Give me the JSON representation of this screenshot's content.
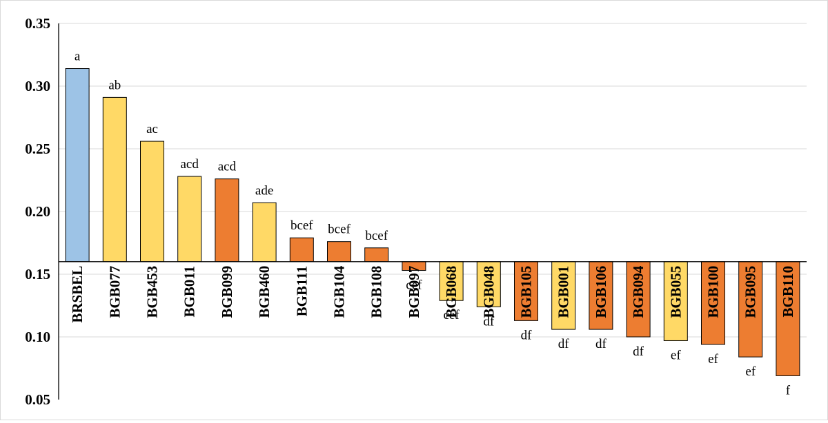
{
  "chart_data": {
    "type": "bar",
    "title": "",
    "xlabel": "",
    "ylabel": "",
    "ylim": [
      0.05,
      0.35
    ],
    "baseline": 0.16,
    "yticks": [
      "0.05",
      "0.10",
      "0.15",
      "0.20",
      "0.25",
      "0.30",
      "0.35"
    ],
    "ytick_values": [
      0.05,
      0.1,
      0.15,
      0.2,
      0.25,
      0.3,
      0.35
    ],
    "grid": true,
    "colors": {
      "blue": "#9dc3e6",
      "yellow": "#ffd966",
      "orange": "#ed7d31"
    },
    "categories": [
      "BRSBEL",
      "BGB077",
      "BGB453",
      "BGB011",
      "BGB099",
      "BGB460",
      "BGB111",
      "BGB104",
      "BGB108",
      "BGB097",
      "BGB068",
      "BGB048",
      "BGB105",
      "BGB001",
      "BGB106",
      "BGB094",
      "BGB055",
      "BGB100",
      "BGB095",
      "BGB110"
    ],
    "values": [
      0.314,
      0.291,
      0.256,
      0.228,
      0.226,
      0.207,
      0.179,
      0.176,
      0.171,
      0.153,
      0.129,
      0.124,
      0.113,
      0.106,
      0.106,
      0.1,
      0.097,
      0.094,
      0.084,
      0.069
    ],
    "bar_colors": [
      "blue",
      "yellow",
      "yellow",
      "yellow",
      "orange",
      "yellow",
      "orange",
      "orange",
      "orange",
      "orange",
      "yellow",
      "yellow",
      "orange",
      "yellow",
      "orange",
      "orange",
      "yellow",
      "orange",
      "orange",
      "orange"
    ],
    "significance_letters": [
      "a",
      "ab",
      "ac",
      "acd",
      "acd",
      "ade",
      "bcef",
      "bcef",
      "bcef",
      "cef",
      "cef",
      "df",
      "df",
      "df",
      "df",
      "df",
      "ef",
      "ef",
      "ef",
      "f"
    ]
  }
}
